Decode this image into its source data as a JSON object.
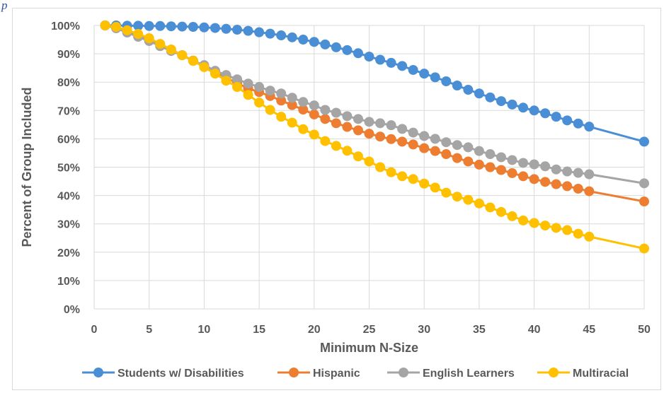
{
  "caption_fragment": "p",
  "chart_data": {
    "type": "line",
    "title": "",
    "xlabel": "Minimum N-Size",
    "ylabel": "Percent of Group Included",
    "xlim": [
      0,
      50
    ],
    "ylim": [
      0,
      100
    ],
    "xticks": [
      0,
      5,
      10,
      15,
      20,
      25,
      30,
      35,
      40,
      45,
      50
    ],
    "yticks": [
      0,
      10,
      20,
      30,
      40,
      50,
      60,
      70,
      80,
      90,
      100
    ],
    "y_tick_suffix": "%",
    "grid": true,
    "legend_position": "bottom",
    "x": [
      1,
      2,
      3,
      4,
      5,
      6,
      7,
      8,
      9,
      10,
      11,
      12,
      13,
      14,
      15,
      16,
      17,
      18,
      19,
      20,
      21,
      22,
      23,
      24,
      25,
      26,
      27,
      28,
      29,
      30,
      31,
      32,
      33,
      34,
      35,
      36,
      37,
      38,
      39,
      40,
      41,
      42,
      43,
      44,
      45,
      50
    ],
    "series": [
      {
        "name": "Students w/ Disabilities",
        "color": "#4a8fd6",
        "values": [
          100,
          100,
          99.9,
          99.9,
          99.8,
          99.8,
          99.7,
          99.6,
          99.5,
          99.3,
          99.1,
          98.8,
          98.5,
          98.1,
          97.6,
          97.1,
          96.5,
          95.8,
          95.0,
          94.2,
          93.3,
          92.3,
          91.3,
          90.2,
          89.0,
          87.9,
          86.8,
          85.7,
          84.3,
          83.0,
          81.7,
          80.3,
          78.8,
          77.3,
          76.0,
          74.6,
          73.3,
          72.1,
          71.0,
          70.0,
          69.0,
          67.8,
          66.5,
          65.4,
          64.3,
          59.0
        ]
      },
      {
        "name": "Hispanic",
        "color": "#ed7d31",
        "values": [
          100,
          99.2,
          97.9,
          96.4,
          94.9,
          93.3,
          91.5,
          89.5,
          87.6,
          85.6,
          83.6,
          81.6,
          79.6,
          77.8,
          76.5,
          75.1,
          73.5,
          71.9,
          70.3,
          68.6,
          67.0,
          65.5,
          64.2,
          63.0,
          61.8,
          60.8,
          59.9,
          59.0,
          58.0,
          56.7,
          55.7,
          54.6,
          53.2,
          52.0,
          50.9,
          50.0,
          49.0,
          47.9,
          46.8,
          45.8,
          44.8,
          44.0,
          43.3,
          42.4,
          41.5,
          37.9
        ]
      },
      {
        "name": "English Learners",
        "color": "#a5a5a5",
        "values": [
          100,
          99.0,
          97.5,
          96.0,
          94.5,
          92.7,
          91.0,
          89.5,
          87.5,
          86.0,
          84.0,
          82.5,
          81.0,
          79.5,
          78.3,
          77.0,
          76.0,
          74.5,
          73.0,
          71.8,
          70.2,
          69.2,
          68.0,
          67.0,
          66.0,
          65.5,
          64.8,
          63.5,
          62.2,
          61.0,
          60.0,
          58.8,
          57.8,
          57.0,
          55.7,
          54.6,
          53.5,
          52.5,
          51.5,
          51.0,
          50.3,
          49.2,
          48.5,
          48.0,
          47.5,
          44.3
        ]
      },
      {
        "name": "Multiracial",
        "color": "#ffc000",
        "values": [
          100,
          99.5,
          98.3,
          97.0,
          95.5,
          93.5,
          91.5,
          89.5,
          87.5,
          85.3,
          83.0,
          80.5,
          78.3,
          75.5,
          72.8,
          70.2,
          67.8,
          65.7,
          63.4,
          61.5,
          59.2,
          57.5,
          55.8,
          53.8,
          52.0,
          50.0,
          48.2,
          46.8,
          45.8,
          44.2,
          42.8,
          41.0,
          39.6,
          38.5,
          37.2,
          35.8,
          34.2,
          32.7,
          31.2,
          30.3,
          29.4,
          28.6,
          27.8,
          26.5,
          25.5,
          21.3
        ]
      }
    ]
  }
}
